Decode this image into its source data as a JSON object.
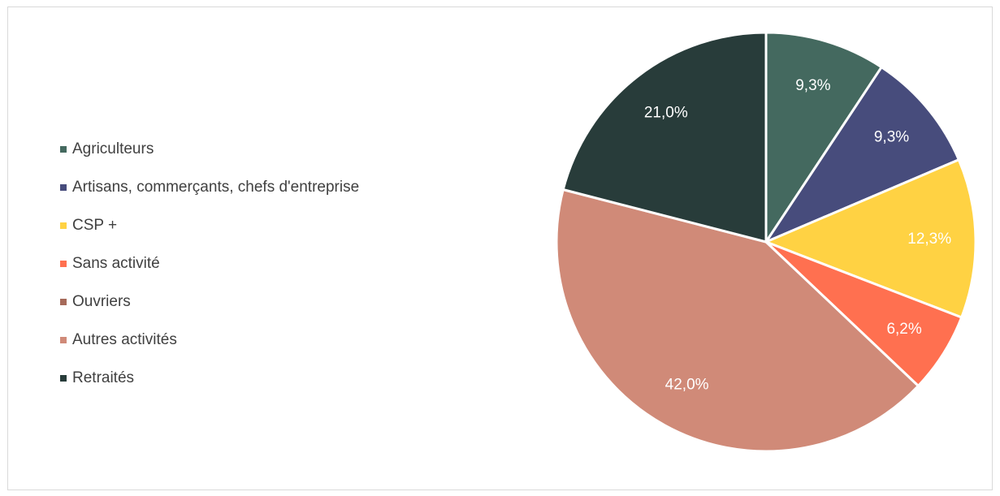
{
  "chart_data": {
    "type": "pie",
    "categories": [
      "Agriculteurs",
      "Artisans, commerçants, chefs d'entreprise",
      "CSP +",
      "Sans activité",
      "Ouvriers",
      "Autres activités",
      "Retraités"
    ],
    "values": [
      9.3,
      9.3,
      12.3,
      6.2,
      0.0,
      42.0,
      21.0
    ],
    "data_labels": [
      "9,3%",
      "9,3%",
      "12,3%",
      "6,2%",
      "",
      "42,0%",
      "21,0%"
    ],
    "colors": [
      "#44695f",
      "#474c7c",
      "#ffd243",
      "#ff7050",
      "#a66a5a",
      "#d08a78",
      "#283c3a"
    ],
    "legend_position": "left",
    "title": ""
  }
}
